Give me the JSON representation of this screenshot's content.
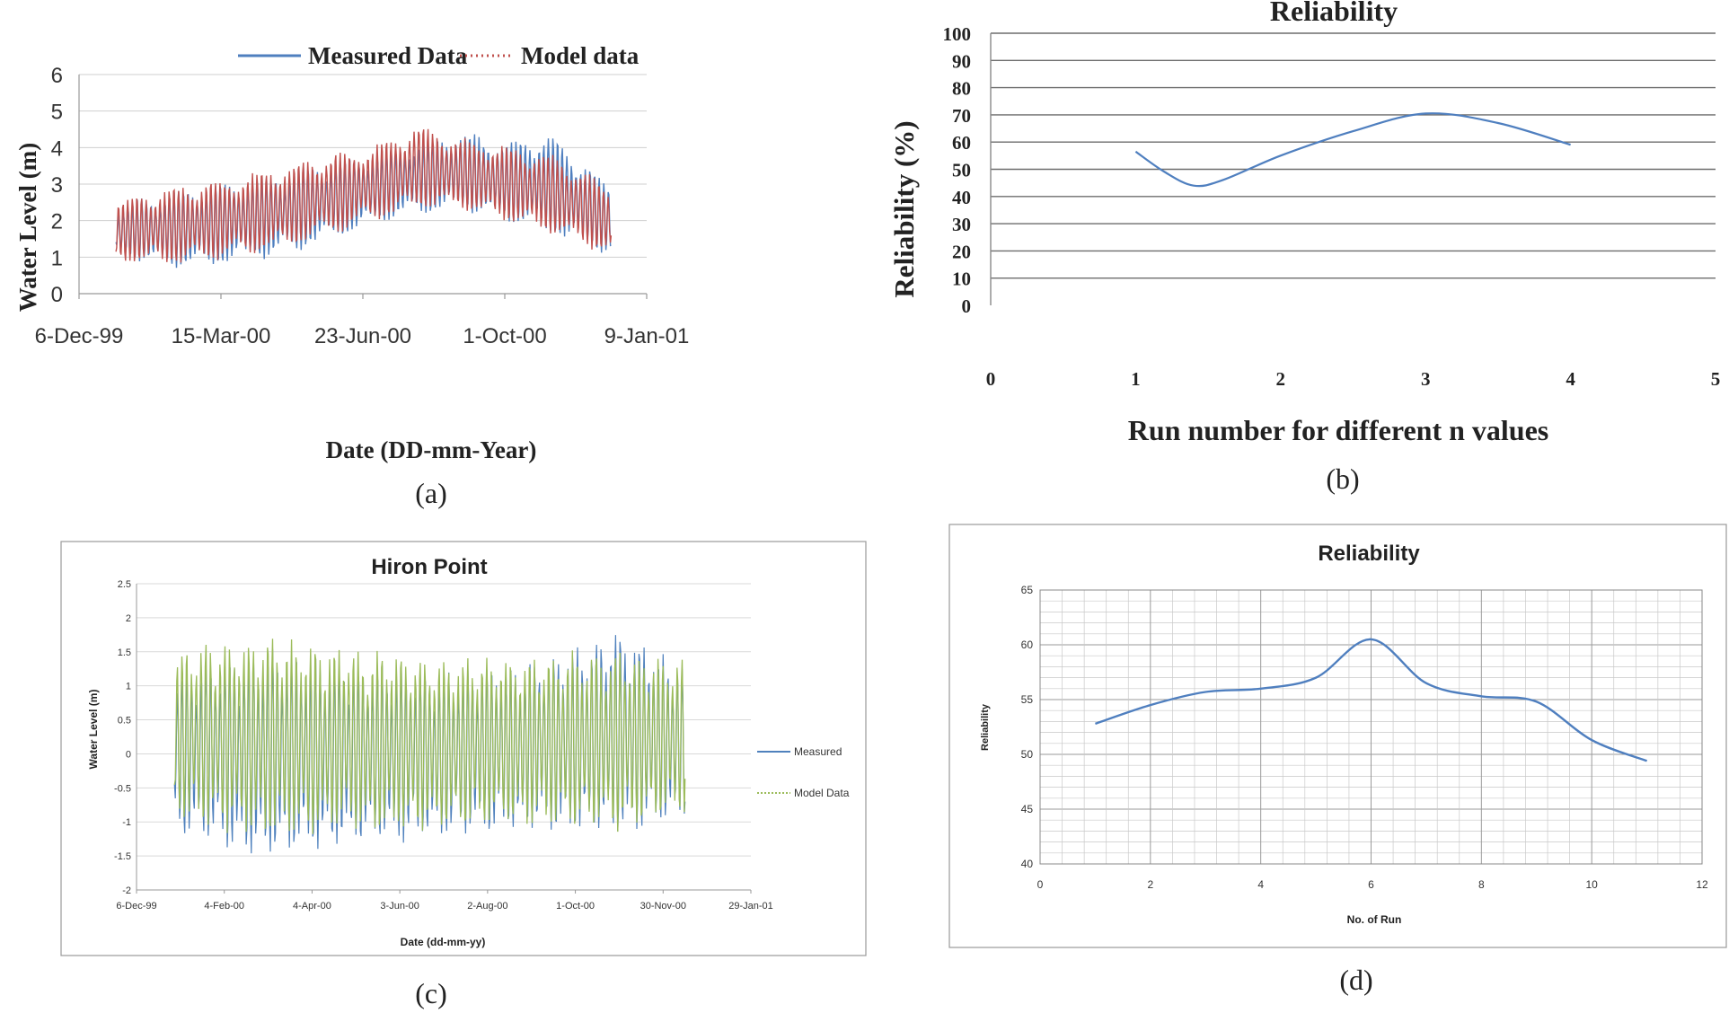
{
  "chart_data": [
    {
      "panel": "a",
      "type": "line",
      "title": "",
      "xlabel": "Date (DD-mm-Year)",
      "ylabel": "Water Level (m)",
      "panel_label": "(a)",
      "legend_position": "top",
      "x_ticks": [
        "6-Dec-99",
        "15-Mar-00",
        "23-Jun-00",
        "1-Oct-00",
        "9-Jan-01"
      ],
      "y_ticks": [
        "0",
        "1",
        "2",
        "3",
        "4",
        "5",
        "6"
      ],
      "xlim": [
        "1999-12-06",
        "2001-01-09"
      ],
      "ylim": [
        0,
        6
      ],
      "grid": true,
      "x_range_of_data": [
        "2000-01-01",
        "2000-12-15"
      ],
      "series": [
        {
          "name": "Measured Data",
          "color": "#4f7fbf",
          "style": "solid",
          "x": [
            "2000-01-01",
            "2000-02-01",
            "2000-03-01",
            "2000-04-01",
            "2000-05-01",
            "2000-06-01",
            "2000-07-01",
            "2000-08-01",
            "2000-09-01",
            "2000-10-01",
            "2000-11-01",
            "2000-12-01",
            "2000-12-15"
          ],
          "lower": [
            1.0,
            0.7,
            0.65,
            0.85,
            1.05,
            1.4,
            1.85,
            2.15,
            2.2,
            1.95,
            1.55,
            1.2,
            1.0
          ],
          "upper": [
            2.4,
            2.8,
            3.0,
            3.2,
            3.4,
            3.7,
            3.9,
            4.2,
            4.5,
            4.2,
            4.5,
            3.5,
            3.0
          ]
        },
        {
          "name": "Model data",
          "color": "#c0504d",
          "style": "dotted",
          "x": [
            "2000-01-01",
            "2000-02-01",
            "2000-03-01",
            "2000-04-01",
            "2000-05-01",
            "2000-06-01",
            "2000-07-01",
            "2000-08-01",
            "2000-09-01",
            "2000-10-01",
            "2000-11-01",
            "2000-12-01",
            "2000-12-15"
          ],
          "lower": [
            0.85,
            0.75,
            0.8,
            1.0,
            1.2,
            1.55,
            1.95,
            2.25,
            2.25,
            1.95,
            1.6,
            1.2,
            1.0
          ],
          "upper": [
            2.6,
            2.9,
            3.1,
            3.3,
            3.6,
            3.9,
            4.1,
            4.7,
            4.3,
            4.1,
            3.9,
            3.3,
            2.9
          ]
        }
      ]
    },
    {
      "panel": "b",
      "type": "line",
      "title": "Reliability",
      "xlabel": "Run number for different n values",
      "ylabel": "Reliability (%)",
      "panel_label": "(b)",
      "x_ticks": [
        "0",
        "1",
        "2",
        "3",
        "4",
        "5"
      ],
      "y_ticks": [
        "0",
        "10",
        "20",
        "30",
        "40",
        "50",
        "60",
        "70",
        "80",
        "90",
        "100"
      ],
      "xlim": [
        0,
        5
      ],
      "ylim": [
        0,
        100
      ],
      "grid": true,
      "series": [
        {
          "name": "",
          "color": "#4f7fbf",
          "x": [
            1,
            1.2,
            1.4,
            1.6,
            2,
            2.5,
            3,
            3.5,
            4
          ],
          "y": [
            56.5,
            49,
            44,
            46,
            55,
            64,
            70.5,
            67,
            59
          ]
        }
      ]
    },
    {
      "panel": "c",
      "type": "line",
      "title": "Hiron Point",
      "xlabel": "Date (dd-mm-yy)",
      "ylabel": "Water Level (m)",
      "panel_label": "(c)",
      "legend_position": "right",
      "x_ticks": [
        "6-Dec-99",
        "4-Feb-00",
        "4-Apr-00",
        "3-Jun-00",
        "2-Aug-00",
        "1-Oct-00",
        "30-Nov-00",
        "29-Jan-01"
      ],
      "y_ticks": [
        "-2",
        "-1.5",
        "-1",
        "-0.5",
        "0",
        "0.5",
        "1",
        "1.5",
        "2",
        "2.5"
      ],
      "xlim": [
        "1999-12-06",
        "2001-01-29"
      ],
      "ylim": [
        -2,
        2.5
      ],
      "grid": true,
      "x_range_of_data": [
        "2000-01-01",
        "2000-12-15"
      ],
      "series": [
        {
          "name": "Measured",
          "color": "#4f81bd",
          "style": "solid",
          "x": [
            "2000-01-01",
            "2000-03-01",
            "2000-05-01",
            "2000-07-01",
            "2000-09-01",
            "2000-11-01",
            "2000-12-15"
          ],
          "lower": [
            -1.2,
            -1.6,
            -1.4,
            -1.3,
            -1.2,
            -1.3,
            -1.0
          ],
          "upper": [
            1.3,
            1.6,
            1.4,
            1.3,
            1.4,
            1.9,
            1.3
          ]
        },
        {
          "name": "Model Data",
          "color": "#9bbb59",
          "style": "dotted",
          "x": [
            "2000-01-01",
            "2000-03-01",
            "2000-05-01",
            "2000-07-01",
            "2000-09-01",
            "2000-11-01",
            "2000-12-15"
          ],
          "lower": [
            -1.0,
            -1.3,
            -1.2,
            -1.2,
            -1.1,
            -1.2,
            -0.9
          ],
          "upper": [
            1.6,
            1.8,
            1.6,
            1.5,
            1.5,
            1.6,
            1.4
          ]
        }
      ]
    },
    {
      "panel": "d",
      "type": "line",
      "title": "Reliability",
      "xlabel": "No. of Run",
      "ylabel": "Reliability",
      "panel_label": "(d)",
      "x_ticks": [
        "0",
        "2",
        "4",
        "6",
        "8",
        "10",
        "12"
      ],
      "y_ticks": [
        "40",
        "45",
        "50",
        "55",
        "60",
        "65"
      ],
      "xlim": [
        0,
        12
      ],
      "ylim": [
        40,
        65
      ],
      "grid": true,
      "series": [
        {
          "name": "",
          "color": "#4f7fbf",
          "x": [
            1,
            2,
            3,
            4,
            5,
            6,
            7,
            8,
            9,
            10,
            11
          ],
          "y": [
            52.8,
            54.5,
            55.7,
            56.0,
            57.0,
            60.5,
            56.5,
            55.3,
            54.8,
            51.3,
            49.4
          ]
        }
      ]
    }
  ]
}
